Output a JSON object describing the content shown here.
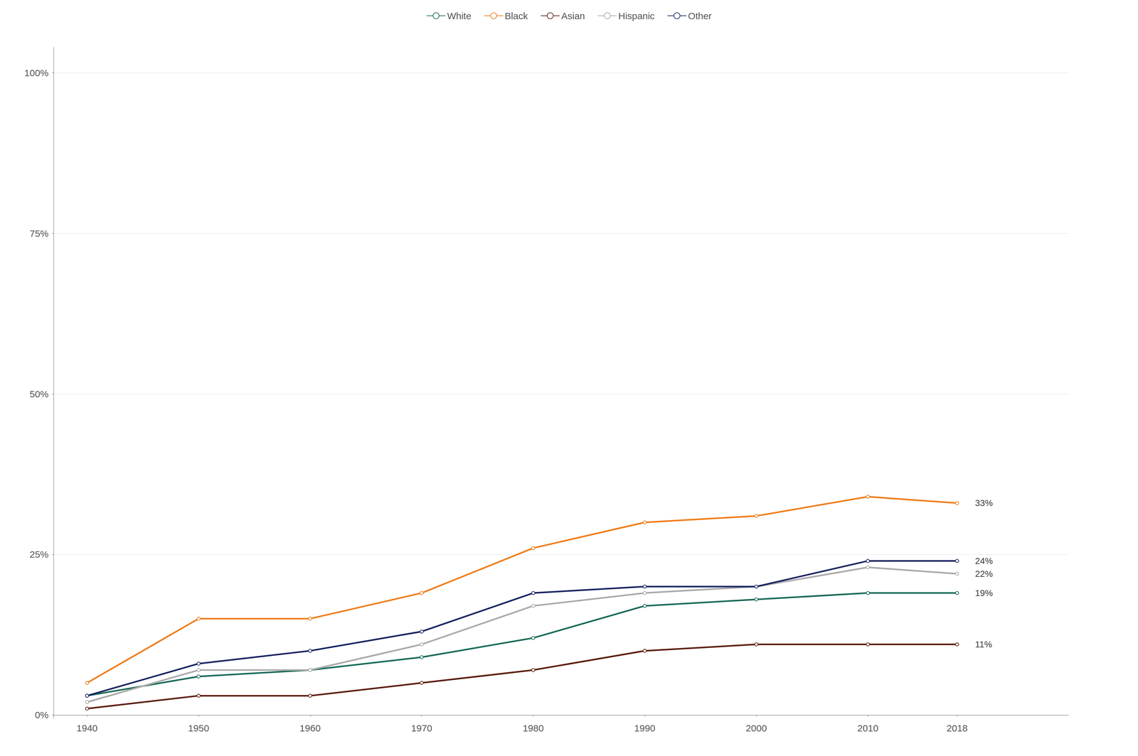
{
  "chart_data": {
    "type": "line",
    "x": [
      1940,
      1950,
      1960,
      1970,
      1980,
      1990,
      2000,
      2010,
      2018
    ],
    "series": [
      {
        "name": "White",
        "color": "#1a6b5a",
        "values": [
          0.03,
          0.06,
          0.07,
          0.09,
          0.12,
          0.17,
          0.18,
          0.19,
          0.19
        ]
      },
      {
        "name": "Black",
        "color": "#f07d1a",
        "values": [
          0.05,
          0.15,
          0.15,
          0.19,
          0.26,
          0.3,
          0.31,
          0.34,
          0.33
        ]
      },
      {
        "name": "Asian",
        "color": "#5c2010",
        "values": [
          0.01,
          0.03,
          0.03,
          0.05,
          0.07,
          0.1,
          0.11,
          0.11,
          0.11
        ]
      },
      {
        "name": "Hispanic",
        "color": "#aaaaaa",
        "values": [
          0.02,
          0.07,
          0.07,
          0.11,
          0.17,
          0.19,
          0.2,
          0.23,
          0.22
        ]
      },
      {
        "name": "Other",
        "color": "#1a2560",
        "values": [
          0.03,
          0.08,
          0.1,
          0.13,
          0.19,
          0.2,
          0.2,
          0.24,
          0.24
        ]
      }
    ],
    "annotations": [
      {
        "text": "33%",
        "x": 2019.5,
        "y": 0.33
      },
      {
        "text": "24%",
        "x": 2019.5,
        "y": 0.24
      },
      {
        "text": "22%",
        "x": 2019.5,
        "y": 0.22
      },
      {
        "text": "19%",
        "x": 2019.5,
        "y": 0.19
      },
      {
        "text": "11%",
        "x": 2019.5,
        "y": 0.11
      }
    ],
    "xlim": [
      1937,
      2028
    ],
    "xticks": [
      1940,
      1950,
      1960,
      1970,
      1980,
      1990,
      2000,
      2010,
      2018
    ],
    "ylim": [
      -0.005,
      1.04
    ],
    "yticks": [
      {
        "value": 0.0,
        "label": "0%"
      },
      {
        "value": 0.25,
        "label": "25%"
      },
      {
        "value": 0.5,
        "label": "50%"
      },
      {
        "value": 0.75,
        "label": "75%"
      },
      {
        "value": 1.0,
        "label": "100%"
      }
    ],
    "grid": true,
    "legend": "top"
  }
}
